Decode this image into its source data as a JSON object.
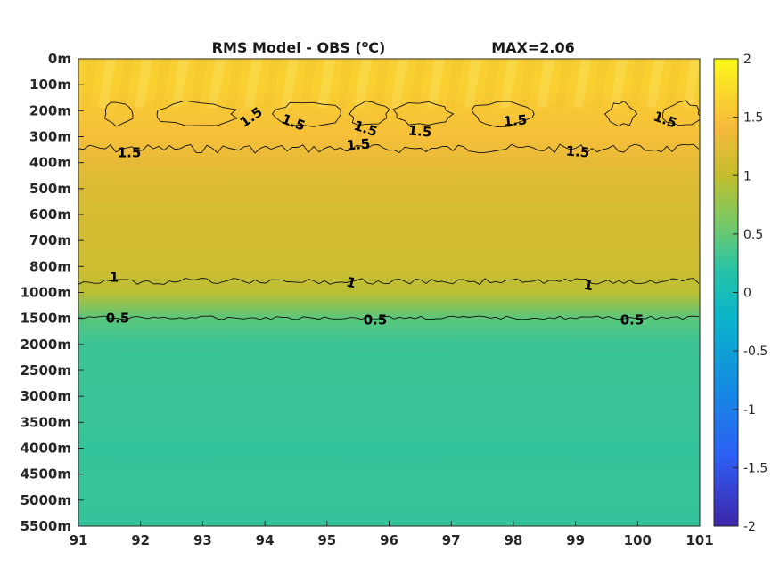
{
  "chart_data": {
    "type": "heatmap",
    "title": "RMS Model - OBS (°C)",
    "title_main": "RMS Model - OBS (",
    "title_unit_sup": "o",
    "title_unit_tail": "C)",
    "max_label": "MAX=2.06",
    "x_ticks": [
      "91",
      "92",
      "93",
      "94",
      "95",
      "96",
      "97",
      "98",
      "99",
      "100",
      "101"
    ],
    "xlim": [
      91,
      101
    ],
    "y_ticks": [
      "0m",
      "100m",
      "200m",
      "300m",
      "400m",
      "500m",
      "600m",
      "700m",
      "800m",
      "1000m",
      "1500m",
      "2000m",
      "2500m",
      "3000m",
      "3500m",
      "4000m",
      "4500m",
      "5000m",
      "5500m"
    ],
    "colorbar": {
      "ticks": [
        "2",
        "1.5",
        "1",
        "0.5",
        "0",
        "-0.5",
        "-1",
        "-1.5",
        "-2"
      ],
      "range": [
        -2,
        2
      ],
      "colormap": "parula"
    },
    "layer_values": [
      1.62,
      1.66,
      1.55,
      1.46,
      1.28,
      1.2,
      1.15,
      1.12,
      1.1,
      0.95,
      0.45,
      0.3,
      0.29,
      0.28,
      0.28,
      0.26,
      0.27,
      0.27,
      0.26
    ],
    "contour_levels": [
      {
        "level": "1.5",
        "labels": [
          "1.5",
          "1.5",
          "1.5",
          "1.5",
          "1.5",
          "1.5",
          "1.5",
          "1.5",
          "1.5",
          "1.5"
        ]
      },
      {
        "level": "1",
        "labels": [
          "1",
          "1",
          "1"
        ]
      },
      {
        "level": "0.5",
        "labels": [
          "0.5",
          "0.5",
          "0.5"
        ]
      }
    ]
  }
}
